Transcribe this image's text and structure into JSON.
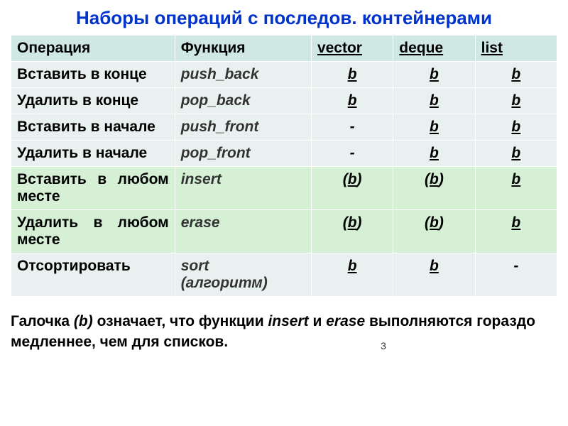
{
  "title": "Наборы операций с последов. контейнерами",
  "headers": {
    "operation": "Операция",
    "function": "Функция",
    "vector": "vector",
    "deque": "deque",
    "list": "list"
  },
  "rows": [
    {
      "operation": "Вставить в конце",
      "function": "push_back",
      "vector": "b",
      "deque": "b",
      "list": "b",
      "row_color": "light",
      "paren_vector": false,
      "paren_deque": false
    },
    {
      "operation": "Удалить в конце",
      "function": "pop_back",
      "vector": "b",
      "deque": "b",
      "list": "b",
      "row_color": "light",
      "paren_vector": false,
      "paren_deque": false
    },
    {
      "operation": "Вставить в начале",
      "function": "push_front",
      "vector": "-",
      "deque": "b",
      "list": "b",
      "row_color": "light",
      "paren_vector": false,
      "paren_deque": false
    },
    {
      "operation": "Удалить в начале",
      "function": "pop_front",
      "vector": "-",
      "deque": "b",
      "list": "b",
      "row_color": "light",
      "paren_vector": false,
      "paren_deque": false
    },
    {
      "operation": "Вставить в любом месте",
      "function": "insert",
      "vector": "b",
      "deque": "b",
      "list": "b",
      "row_color": "green",
      "paren_vector": true,
      "paren_deque": true,
      "justify": true
    },
    {
      "operation": "Удалить в любом месте",
      "function": "erase",
      "vector": "b",
      "deque": "b",
      "list": "b",
      "row_color": "green",
      "paren_vector": true,
      "paren_deque": true,
      "justify": true
    },
    {
      "operation": "Отсортировать",
      "function": "sort (алгоритм)",
      "function_main": "sort",
      "function_sub": "(алгоритм)",
      "vector": "b",
      "deque": "b",
      "list": "-",
      "row_color": "light",
      "paren_vector": false,
      "paren_deque": false
    }
  ],
  "footnote": {
    "part1": "Галочка ",
    "part2": "(b)",
    "part3": " означает, что функции ",
    "part4": "insert",
    "part5": " и ",
    "part6": "erase",
    "part7": " выполняются гораздо медленнее, чем для списков."
  },
  "page_number": "3"
}
